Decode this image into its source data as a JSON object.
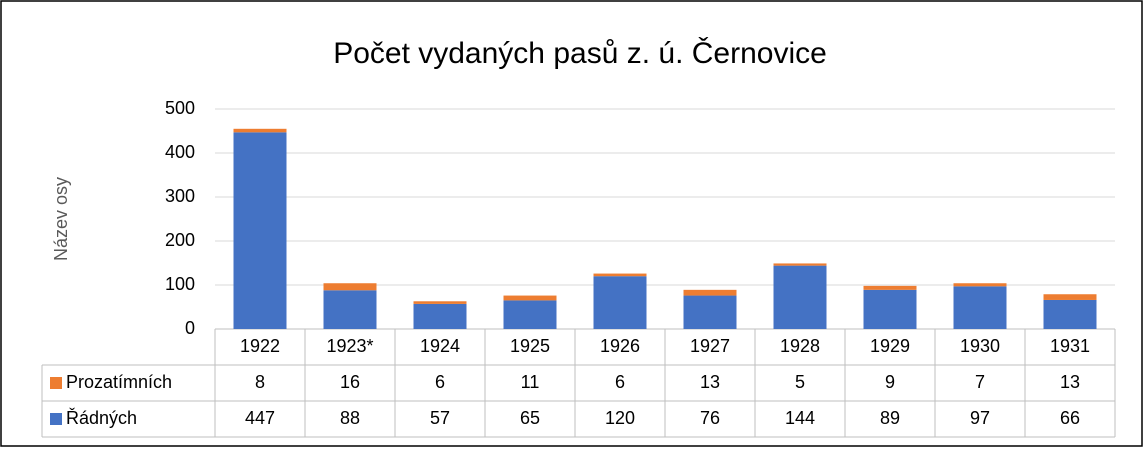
{
  "chart_data": {
    "type": "stacked_bar",
    "title": "Počet vydaných pasů z. ú. Černovice",
    "y_label": "Název osy",
    "categories": [
      "1922",
      "1923*",
      "1924",
      "1925",
      "1926",
      "1927",
      "1928",
      "1929",
      "1930",
      "1931"
    ],
    "series": [
      {
        "name": "Řádných",
        "color": "#4472c4",
        "values": [
          447,
          88,
          57,
          65,
          120,
          76,
          144,
          89,
          97,
          66
        ]
      },
      {
        "name": "Prozatímních",
        "color": "#ed7d31",
        "values": [
          8,
          16,
          6,
          11,
          6,
          13,
          5,
          9,
          7,
          13
        ]
      }
    ],
    "ylim": [
      0,
      500
    ],
    "yticks": [
      0,
      100,
      200,
      300,
      400,
      500
    ],
    "grid": true
  }
}
